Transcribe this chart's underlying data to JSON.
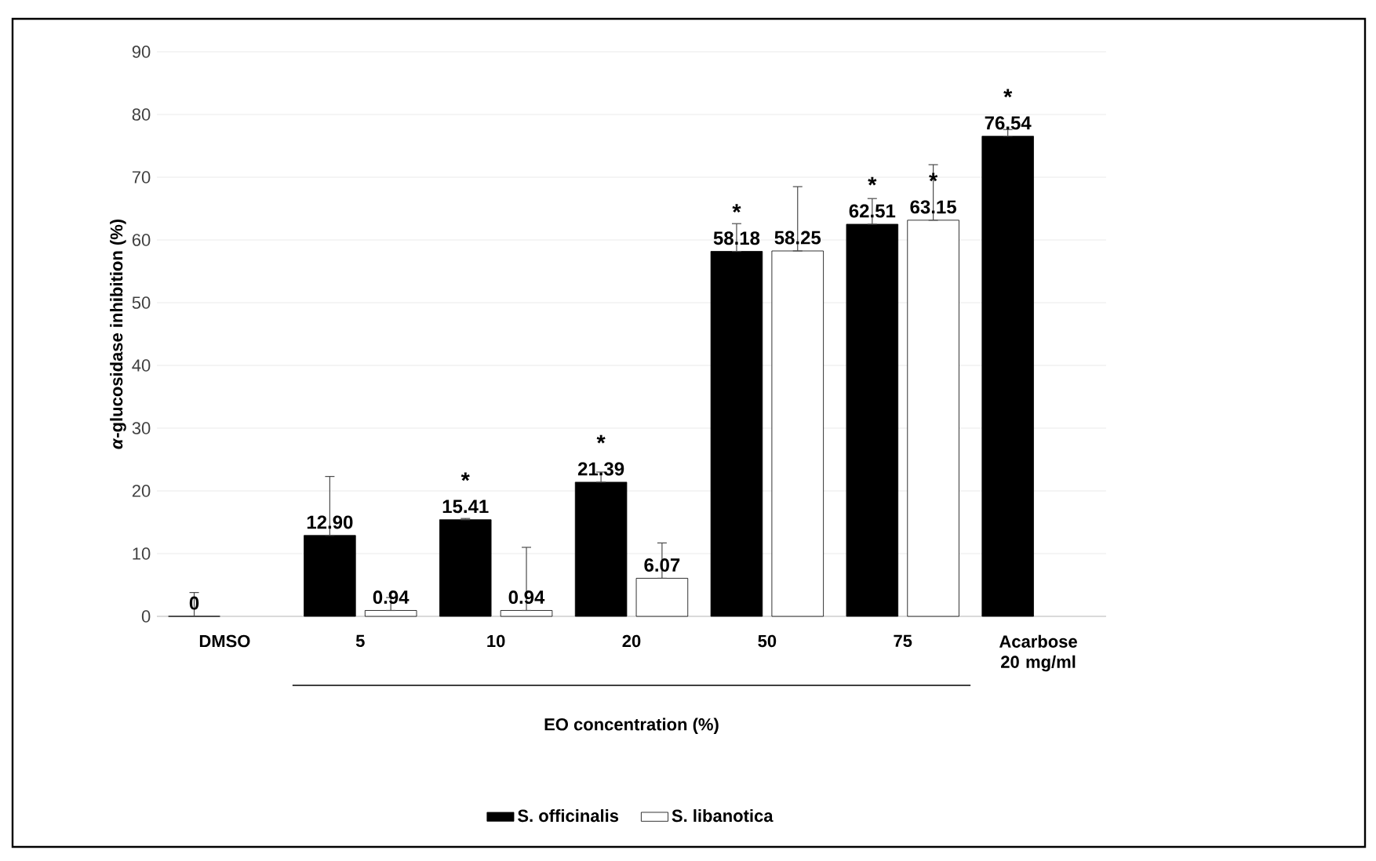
{
  "chart_data": {
    "type": "bar",
    "categories": [
      "DMSO",
      "5",
      "10",
      "20",
      "50",
      "75",
      "Acarbose 20 mg/ml"
    ],
    "xlabel": "EO concentration (%)",
    "ylabel": "*α*-glucosidase inhibition (%)",
    "ylim": [
      0,
      90
    ],
    "yticks": [
      0,
      10,
      20,
      30,
      40,
      50,
      60,
      70,
      80,
      90
    ],
    "grid": "y",
    "legend": "bottom",
    "series": [
      {
        "name": "S. officinalis",
        "color": "#000000",
        "values": [
          0,
          12.9,
          15.41,
          21.39,
          58.18,
          62.51,
          76.54
        ],
        "value_labels": [
          "0",
          "12.90",
          "15.41",
          "21.39",
          "58.18",
          "62.51",
          "76.54"
        ],
        "errors": [
          [
            0,
            3.8
          ],
          [
            12.9,
            22.3
          ],
          [
            15.41,
            15.6
          ],
          [
            21.39,
            23.0
          ],
          [
            58.18,
            62.6
          ],
          [
            62.51,
            66.6
          ],
          [
            76.54,
            77.6
          ]
        ]
      },
      {
        "name": "S. libanotica",
        "color": "#ffffff",
        "values": [
          null,
          0.94,
          0.94,
          6.07,
          58.25,
          63.15,
          null
        ],
        "value_labels": [
          null,
          "0.94",
          "0.94",
          "6.07",
          "58.25",
          "63.15",
          null
        ],
        "errors": [
          null,
          [
            0.94,
            3.0
          ],
          [
            0.94,
            11.0
          ],
          [
            6.07,
            11.7
          ],
          [
            58.25,
            68.5
          ],
          [
            63.15,
            72.0
          ],
          null
        ]
      }
    ],
    "annotations": [
      {
        "text": "*",
        "x": "10",
        "y": 15.41
      },
      {
        "text": "*",
        "x": "20",
        "y": 21.39
      },
      {
        "text": "*",
        "x": "50",
        "y": 58.18
      },
      {
        "text": "*",
        "x": "75",
        "y": 62.51
      },
      {
        "text": "*",
        "x": "75",
        "y": 63.15
      },
      {
        "text": "*",
        "x": "Acarbose 20 mg/ml",
        "y": 76.54
      }
    ]
  }
}
